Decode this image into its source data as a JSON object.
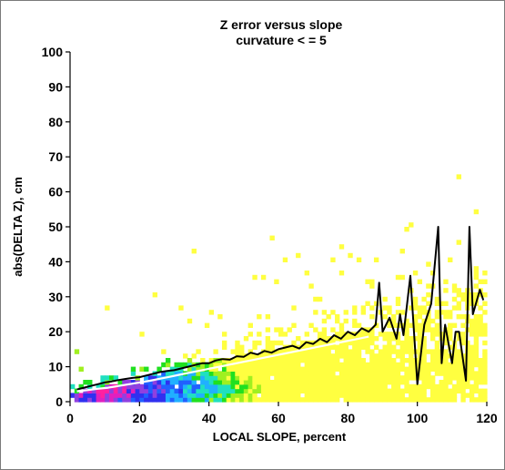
{
  "chart_data": {
    "type": "heatmap",
    "title": "Z error versus slope",
    "subtitle": "curvature < = 5",
    "xlabel": "LOCAL SLOPE, percent",
    "ylabel": "abs(DELTA Z), cm",
    "xlim": [
      0,
      120
    ],
    "ylim": [
      0,
      100
    ],
    "xticks": [
      "0",
      "20",
      "40",
      "60",
      "80",
      "100",
      "120"
    ],
    "yticks": [
      "0",
      "10",
      "20",
      "30",
      "40",
      "50",
      "60",
      "70",
      "80",
      "90",
      "100"
    ],
    "grid": false,
    "legend": "none",
    "density_colors": [
      "#ffff40",
      "#a0f020",
      "#20e020",
      "#20e0c0",
      "#20b0ff",
      "#2060ff",
      "#3030f0",
      "#9040e0",
      "#e020c0",
      "#ff20a0"
    ],
    "series": [
      {
        "style": "black-line",
        "x": [
          2,
          4,
          6,
          8,
          10,
          12,
          14,
          16,
          18,
          20,
          22,
          24,
          26,
          28,
          30,
          32,
          34,
          36,
          38,
          40,
          42,
          44,
          46,
          48,
          50,
          52,
          54,
          56,
          58,
          60,
          62,
          64,
          66,
          68,
          70,
          72,
          74,
          76,
          78,
          80,
          82,
          84,
          86,
          88,
          89,
          90,
          92,
          94,
          95,
          96,
          98,
          100,
          102,
          104,
          106,
          107,
          108,
          110,
          111,
          112,
          114,
          115,
          116,
          118,
          119
        ],
        "y": [
          3.5,
          4,
          4.5,
          5,
          5.5,
          5.8,
          6.2,
          6.5,
          6.8,
          7,
          7.5,
          8,
          8.5,
          8.8,
          9,
          9.5,
          10,
          10.5,
          11,
          11,
          11.8,
          12.2,
          12,
          13,
          12.8,
          14,
          13.5,
          14.5,
          14,
          15,
          15.5,
          16,
          15.2,
          17,
          16.5,
          18,
          17,
          19,
          18,
          20,
          19,
          21,
          20,
          22,
          34,
          20,
          24,
          18,
          25,
          19,
          36,
          5,
          22,
          28,
          50,
          11,
          22,
          11,
          20,
          20,
          6,
          50,
          25,
          32,
          29
        ]
      },
      {
        "style": "white-line",
        "x": [
          2,
          5,
          8,
          11,
          14,
          17,
          20,
          23,
          26,
          29,
          32,
          35,
          38,
          41,
          44,
          47,
          50,
          53,
          56,
          59,
          62,
          65,
          68,
          71,
          74,
          77,
          80,
          83,
          86
        ],
        "y": [
          3,
          3.3,
          3.7,
          4,
          4.5,
          5,
          5.5,
          6,
          6.6,
          7.2,
          7.8,
          8.4,
          9,
          9.6,
          10.2,
          10.8,
          11.4,
          12,
          12.6,
          13.2,
          13.8,
          14.4,
          15,
          15.6,
          16.2,
          16.8,
          17.4,
          18,
          18.6
        ]
      }
    ]
  }
}
